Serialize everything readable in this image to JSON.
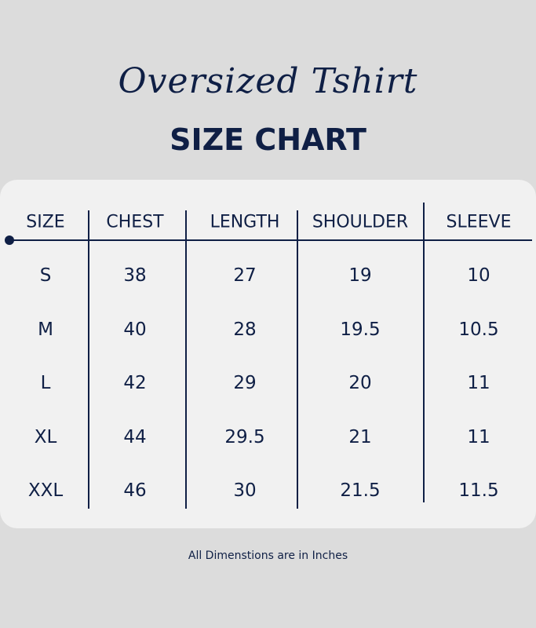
{
  "header": {
    "subtitle": "Oversized Tshirt",
    "title": "SIZE CHART"
  },
  "table": {
    "columns": [
      "SIZE",
      "CHEST",
      "LENGTH",
      "SHOULDER",
      "SLEEVE"
    ],
    "rows": [
      [
        "S",
        "38",
        "27",
        "19",
        "10"
      ],
      [
        "M",
        "40",
        "28",
        "19.5",
        "10.5"
      ],
      [
        "L",
        "42",
        "29",
        "20",
        "11"
      ],
      [
        "XL",
        "44",
        "29.5",
        "21",
        "11"
      ],
      [
        "XXL",
        "46",
        "30",
        "21.5",
        "11.5"
      ]
    ]
  },
  "footer": {
    "note": "All Dimenstions are in Inches"
  },
  "colors": {
    "background": "#dcdcdc",
    "card": "#f1f1f1",
    "text": "#0f1f45"
  }
}
